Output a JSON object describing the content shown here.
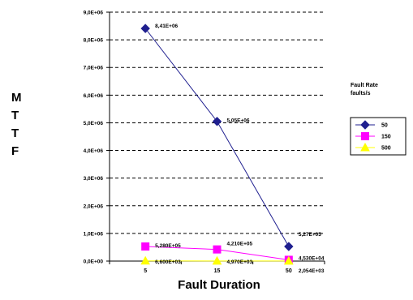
{
  "chart_data": {
    "type": "line",
    "title": "",
    "xlabel": "Fault Duration",
    "ylabel": "MTTF",
    "ylabel_letters": [
      "M",
      "T",
      "T",
      "F"
    ],
    "categories": [
      "5",
      "15",
      "50"
    ],
    "ylim": [
      0,
      9000000
    ],
    "yticks": [
      "0,0E+00",
      "1,0E+06",
      "2,0E+06",
      "3,0E+06",
      "4,0E+06",
      "5,0E+06",
      "6,0E+06",
      "7,0E+06",
      "8,0E+06",
      "9,0E+06"
    ],
    "grid": "horizontal dashed",
    "legend_title": [
      "Fault Rate",
      "faults/s"
    ],
    "legend_position": "right",
    "series": [
      {
        "name": "50",
        "values": [
          8410000,
          5050000,
          527000
        ],
        "color": "#1f1f8f",
        "marker": "diamond",
        "labels": [
          "8,41E+06",
          "5,05E+06",
          "5,27E+05"
        ]
      },
      {
        "name": "150",
        "values": [
          528000,
          421000,
          45300
        ],
        "color": "#ff00ff",
        "marker": "square",
        "labels": [
          "5,280E+05",
          "4,210E+05",
          "4,530E+04"
        ]
      },
      {
        "name": "500",
        "values": [
          6600,
          4970,
          2054
        ],
        "color": "#ffff00",
        "marker": "triangle",
        "labels": [
          "6,600E+03",
          "4,970E+03",
          "2,054E+03"
        ]
      }
    ]
  }
}
